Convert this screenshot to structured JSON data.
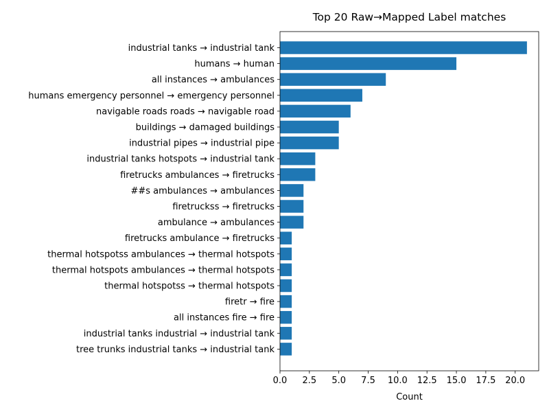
{
  "chart_data": {
    "type": "bar",
    "orientation": "horizontal",
    "title": "Top 20 Raw→Mapped Label matches",
    "xlabel": "Count",
    "ylabel": "",
    "xlim": [
      0,
      22
    ],
    "xticks": [
      "0.0",
      "2.5",
      "5.0",
      "7.5",
      "10.0",
      "12.5",
      "15.0",
      "17.5",
      "20.0"
    ],
    "grid": false,
    "bar_color": "#1f77b4",
    "categories": [
      "industrial tanks → industrial tank",
      "humans → human",
      "all instances → ambulances",
      "humans emergency personnel → emergency personnel",
      "navigable roads roads → navigable road",
      "buildings → damaged buildings",
      "industrial pipes → industrial pipe",
      "industrial tanks hotspots → industrial tank",
      "firetrucks ambulances → firetrucks",
      "##s ambulances → ambulances",
      "firetruckss → firetrucks",
      "ambulance → ambulances",
      "firetrucks ambulance → firetrucks",
      "thermal hotspotss ambulances → thermal hotspots",
      "thermal hotspots ambulances → thermal hotspots",
      "thermal hotspotss → thermal hotspots",
      "firetr → fire",
      "all instances fire → fire",
      "industrial tanks industrial → industrial tank",
      "tree trunks industrial tanks → industrial tank"
    ],
    "values": [
      21,
      15,
      9,
      7,
      6,
      5,
      5,
      3,
      3,
      2,
      2,
      2,
      1,
      1,
      1,
      1,
      1,
      1,
      1,
      1
    ]
  }
}
